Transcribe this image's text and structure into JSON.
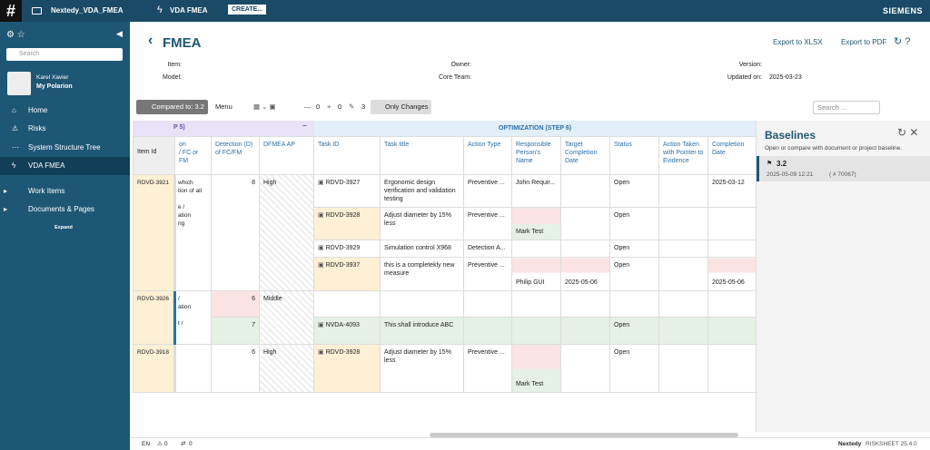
{
  "topbar": {
    "project": "Nextedy_VDA_FMEA",
    "doc": "VDA FMEA",
    "create": "CREATE...",
    "brand": "SIEMENS"
  },
  "sidebar": {
    "search": "Search",
    "user_name": "Karel Xavier",
    "user_link": "My Polarion",
    "nav": [
      "Home",
      "Risks",
      "System Structure Tree",
      "VDA FMEA",
      "Work Items",
      "Documents & Pages"
    ],
    "expand": "Expand"
  },
  "header": {
    "title": "FMEA",
    "export_xlsx": "Export to XLSX",
    "export_pdf": "Export to PDF",
    "item": "Item:",
    "model": "Model:",
    "owner": "Owner:",
    "core_team": "Core Team:",
    "version": "Version:",
    "updated_label": "Updated on:",
    "updated": "2025-03-23"
  },
  "toolbar": {
    "compared": "Compared to: 3.2",
    "menu": "Menu",
    "removed": 0,
    "added": 0,
    "changed": 3,
    "only_changes": "Only Changes",
    "search": "Search ..."
  },
  "table": {
    "group_left": "P 5)",
    "group_right": "OPTIMIZATION (STEP 6)",
    "columns": [
      "Item Id",
      "on\n/ FC or FM",
      "Detection (D) of FC/FM",
      "DFMEA AP",
      "Task ID",
      "Task title",
      "Action Type",
      "Responsible Person's Name",
      "Target Completion Date",
      "Status",
      "Action Taken with Pointer to Evidence",
      "Completion Date"
    ],
    "groups": [
      {
        "item_id": "RDVD-3921",
        "partial": "which\ntion of all\n\ne /\nation\nng",
        "detection": [
          8
        ],
        "ap": "High",
        "tasks": [
          {
            "id": "RDVD-3927",
            "title": "Ergonomic design verification and validation testing",
            "type": "Preventive ...",
            "person": "John Requir...",
            "target": null,
            "status": "Open",
            "action": null,
            "completion": "2025-03-12"
          },
          {
            "id": "RDVD-3928",
            "title": "Adjust diameter by 15% less",
            "type": "Preventive ...",
            "person": "Mark Test",
            "target": null,
            "status": "Open",
            "action": null,
            "completion": null
          },
          {
            "id": "RDVD-3929",
            "title": "Simulation control X968",
            "type": "Detection A...",
            "person": null,
            "target": null,
            "status": "Open",
            "action": null,
            "completion": null
          },
          {
            "id": "RDVD-3937",
            "title": "this is a completekly new measure",
            "type": "Preventive ...",
            "person": "Philip GUI",
            "target": "2025-05-06",
            "status": "Open",
            "action": null,
            "completion": "2025-05-06"
          }
        ]
      },
      {
        "item_id": "RDVD-3926",
        "partial": "/\nation\n\nt /",
        "detection": [
          6,
          7
        ],
        "ap": "Middle",
        "tasks": [
          null,
          {
            "id": "NVDA-4093",
            "title": "This shall introduce ABC",
            "type": null,
            "person": null,
            "target": null,
            "status": "Open",
            "action": null,
            "completion": null
          }
        ]
      },
      {
        "item_id": "RDVD-3918",
        "partial": null,
        "detection": [
          6
        ],
        "ap": "High",
        "tasks": [
          {
            "id": "RDVD-3928",
            "title": "Adjust diameter by 15% less",
            "type": "Preventive ...",
            "person": "Mark Test",
            "target": null,
            "status": "Open",
            "action": null,
            "completion": null
          }
        ]
      }
    ]
  },
  "baselines": {
    "title": "Baselines",
    "description": "Open or compare with document or project baseline.",
    "name": "3.2",
    "date": "2025-05-09 12:21",
    "id": "( # 70067)"
  },
  "footer": {
    "lang": "EN",
    "warnings": 0,
    "sync": 0,
    "brand": "Nextedy",
    "product": "RISKSHEET 25.4.0"
  }
}
